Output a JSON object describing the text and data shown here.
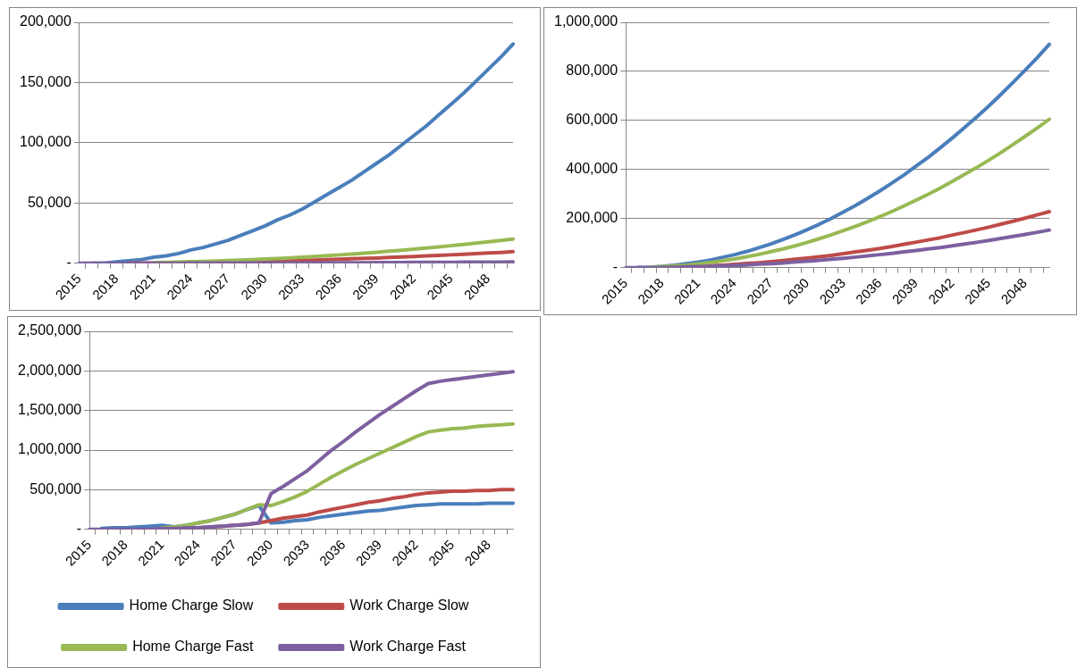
{
  "chart_data": [
    {
      "type": "line",
      "categories": [
        "2015",
        null,
        null,
        "2018",
        null,
        null,
        "2021",
        null,
        null,
        "2024",
        null,
        null,
        "2027",
        null,
        null,
        "2030",
        null,
        null,
        "2033",
        null,
        null,
        "2036",
        null,
        null,
        "2039",
        null,
        null,
        "2042",
        null,
        null,
        "2045",
        null,
        null,
        "2048",
        null,
        null
      ],
      "series": [
        {
          "color": "#4a7ebb",
          "values": [
            null,
            0,
            0,
            1000,
            2000,
            3000,
            5000,
            6000,
            8000,
            11000,
            13000,
            16000,
            19000,
            23000,
            27000,
            31000,
            36000,
            40000,
            45000,
            51000,
            57000,
            63000,
            69000,
            76000,
            83000,
            90000,
            98000,
            106000,
            114000,
            123000,
            132000,
            141000,
            151000,
            161000,
            171000,
            182000
          ]
        },
        {
          "color": "#be4b48",
          "values": [
            null,
            null,
            null,
            null,
            100,
            200,
            200,
            300,
            400,
            600,
            700,
            800,
            1000,
            1200,
            1400,
            1600,
            1900,
            2100,
            2400,
            2600,
            2900,
            3300,
            3600,
            4000,
            4300,
            4700,
            5100,
            5500,
            6000,
            6400,
            6900,
            7400,
            7900,
            8400,
            8900,
            9500
          ]
        },
        {
          "color": "#98b954",
          "values": [
            null,
            null,
            null,
            null,
            null,
            null,
            500,
            700,
            900,
            1200,
            1500,
            1800,
            2100,
            2500,
            2900,
            3400,
            3900,
            4400,
            5000,
            5600,
            6200,
            6900,
            7600,
            8300,
            9100,
            9900,
            10700,
            11600,
            12500,
            13500,
            14500,
            15500,
            16600,
            17700,
            18800,
            20000
          ]
        },
        {
          "color": "#7d60a0",
          "values": [
            0,
            0,
            0,
            0,
            0,
            0,
            0,
            0,
            0,
            100,
            100,
            100,
            100,
            100,
            100,
            200,
            200,
            200,
            200,
            300,
            300,
            300,
            400,
            400,
            500,
            500,
            500,
            600,
            600,
            700,
            700,
            800,
            800,
            900,
            900,
            1000
          ]
        }
      ],
      "ylim": [
        0,
        200000
      ],
      "yticks": [
        {
          "value": 0,
          "label": "-"
        },
        {
          "value": 50000,
          "label": "50,000"
        },
        {
          "value": 100000,
          "label": "100,000"
        },
        {
          "value": 150000,
          "label": "150,000"
        },
        {
          "value": 200000,
          "label": "200,000"
        }
      ],
      "grid": "y"
    },
    {
      "type": "line",
      "categories": [
        "2015",
        null,
        null,
        "2018",
        null,
        null,
        "2021",
        null,
        null,
        "2024",
        null,
        null,
        "2027",
        null,
        null,
        "2030",
        null,
        null,
        "2033",
        null,
        null,
        "2036",
        null,
        null,
        "2039",
        null,
        null,
        "2042",
        null,
        null,
        "2045",
        null,
        null,
        "2048",
        null,
        null
      ],
      "series": [
        {
          "color": "#4a7ebb",
          "values": [
            null,
            1000,
            2000,
            5000,
            10000,
            16000,
            23000,
            31000,
            42000,
            53000,
            66000,
            81000,
            97000,
            115000,
            134000,
            155000,
            177000,
            201000,
            227000,
            254000,
            283000,
            313000,
            345000,
            378000,
            414000,
            450000,
            489000,
            529000,
            571000,
            614000,
            659000,
            706000,
            755000,
            805000,
            856000,
            910000
          ]
        },
        {
          "color": "#be4b48",
          "values": [
            null,
            null,
            null,
            null,
            null,
            null,
            6000,
            8000,
            10000,
            13000,
            17000,
            20000,
            24000,
            29000,
            34000,
            39000,
            44000,
            50000,
            57000,
            64000,
            71000,
            78000,
            86000,
            95000,
            104000,
            113000,
            122000,
            133000,
            143000,
            154000,
            165000,
            177000,
            189000,
            202000,
            215000,
            228000
          ]
        },
        {
          "color": "#98b954",
          "values": [
            null,
            null,
            2000,
            4000,
            7000,
            10000,
            15000,
            21000,
            28000,
            35000,
            44000,
            54000,
            65000,
            76000,
            89000,
            103000,
            118000,
            134000,
            151000,
            169000,
            188000,
            208000,
            229000,
            252000,
            275000,
            299000,
            325000,
            352000,
            380000,
            408000,
            438000,
            469000,
            502000,
            535000,
            569000,
            605000
          ]
        },
        {
          "color": "#7d60a0",
          "values": [
            0,
            0,
            0,
            1000,
            2000,
            3000,
            4000,
            5000,
            7000,
            9000,
            11000,
            14000,
            16000,
            19000,
            23000,
            26000,
            30000,
            34000,
            38000,
            43000,
            48000,
            53000,
            58000,
            64000,
            70000,
            76000,
            82000,
            89000,
            96000,
            103000,
            111000,
            119000,
            127000,
            135000,
            144000,
            153000
          ]
        }
      ],
      "ylim": [
        0,
        1000000
      ],
      "yticks": [
        {
          "value": 0,
          "label": "-"
        },
        {
          "value": 200000,
          "label": "200,000"
        },
        {
          "value": 400000,
          "label": "400,000"
        },
        {
          "value": 600000,
          "label": "600,000"
        },
        {
          "value": 800000,
          "label": "800,000"
        },
        {
          "value": 1000000,
          "label": "1,000,000"
        }
      ],
      "grid": "y"
    },
    {
      "type": "line",
      "categories": [
        "2015",
        null,
        null,
        "2018",
        null,
        null,
        "2021",
        null,
        null,
        "2024",
        null,
        null,
        "2027",
        null,
        null,
        "2030",
        null,
        null,
        "2033",
        null,
        null,
        "2036",
        null,
        null,
        "2039",
        null,
        null,
        "2042",
        null,
        null,
        "2045",
        null,
        null,
        "2048",
        null,
        null
      ],
      "series": [
        {
          "name": "Home Charge Slow",
          "color": "#4a7ebb",
          "values": [
            null,
            10000,
            20000,
            20000,
            30000,
            40000,
            50000,
            30000,
            50000,
            80000,
            110000,
            150000,
            190000,
            250000,
            300000,
            80000,
            90000,
            110000,
            120000,
            150000,
            170000,
            190000,
            210000,
            230000,
            240000,
            260000,
            280000,
            300000,
            310000,
            320000,
            320000,
            320000,
            320000,
            330000,
            330000,
            330000
          ]
        },
        {
          "name": "Work Charge Slow",
          "color": "#be4b48",
          "values": [
            null,
            null,
            null,
            null,
            null,
            null,
            null,
            null,
            20000,
            20000,
            30000,
            40000,
            50000,
            60000,
            80000,
            110000,
            140000,
            160000,
            180000,
            220000,
            250000,
            280000,
            310000,
            340000,
            360000,
            390000,
            410000,
            440000,
            460000,
            470000,
            480000,
            480000,
            490000,
            490000,
            500000,
            500000
          ]
        },
        {
          "name": "Home Charge Fast",
          "color": "#98b954",
          "values": [
            null,
            null,
            null,
            null,
            null,
            null,
            20000,
            30000,
            50000,
            80000,
            110000,
            150000,
            190000,
            250000,
            310000,
            300000,
            350000,
            410000,
            480000,
            570000,
            660000,
            740000,
            820000,
            890000,
            960000,
            1030000,
            1100000,
            1170000,
            1230000,
            1250000,
            1270000,
            1280000,
            1300000,
            1310000,
            1320000,
            1330000
          ]
        },
        {
          "name": "Work Charge Fast",
          "color": "#7d60a0",
          "values": [
            0,
            0,
            0,
            0,
            0,
            0,
            10000,
            10000,
            20000,
            20000,
            30000,
            40000,
            50000,
            60000,
            80000,
            450000,
            540000,
            640000,
            740000,
            870000,
            1000000,
            1110000,
            1230000,
            1340000,
            1450000,
            1550000,
            1650000,
            1750000,
            1840000,
            1870000,
            1890000,
            1910000,
            1930000,
            1950000,
            1970000,
            1990000
          ]
        }
      ],
      "ylim": [
        0,
        2500000
      ],
      "yticks": [
        {
          "value": 0,
          "label": "-"
        },
        {
          "value": 500000,
          "label": "500,000"
        },
        {
          "value": 1000000,
          "label": "1,000,000"
        },
        {
          "value": 1500000,
          "label": "1,500,000"
        },
        {
          "value": 2000000,
          "label": "2,000,000"
        },
        {
          "value": 2500000,
          "label": "2,500,000"
        }
      ],
      "grid": "y",
      "legend": "bottom"
    }
  ]
}
